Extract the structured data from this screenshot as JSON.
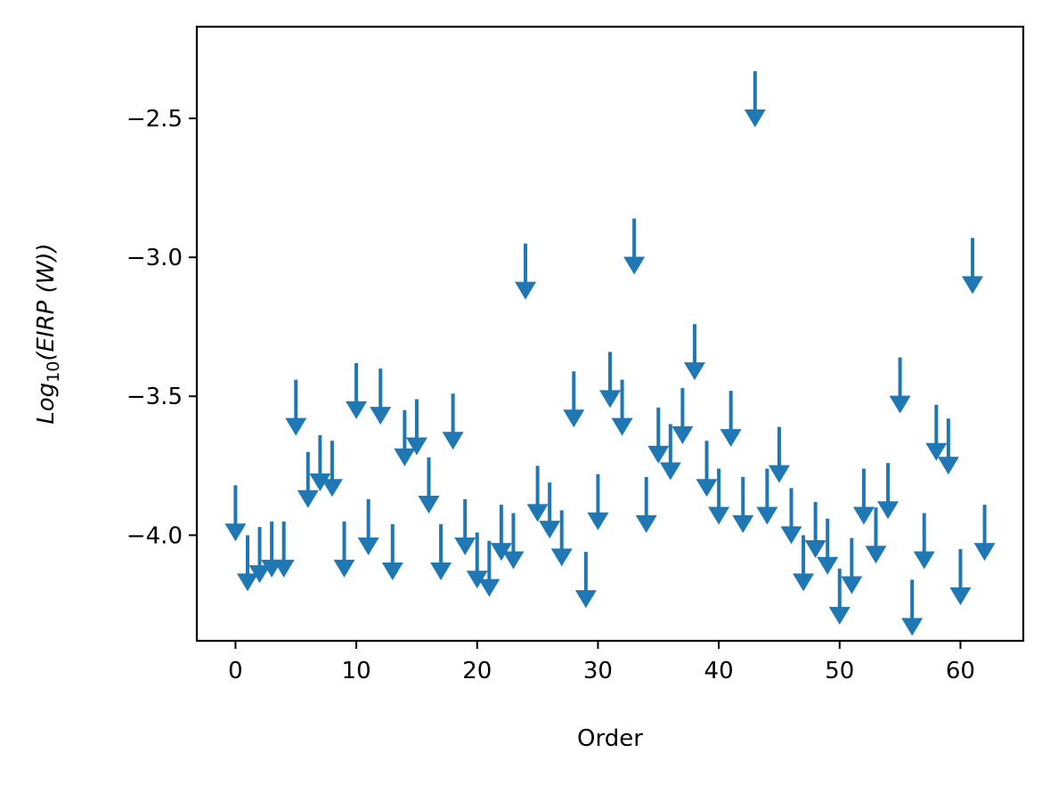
{
  "chart_data": {
    "type": "scatter",
    "marker": "down-arrow",
    "title": "",
    "xlabel": "Order",
    "ylabel": {
      "base": "Log",
      "subscript": "10",
      "rest": "(EIRP (W))"
    },
    "xlim": [
      -3.2,
      65.2
    ],
    "ylim": [
      -4.38,
      -2.17
    ],
    "xticks": [
      0,
      10,
      20,
      30,
      40,
      50,
      60
    ],
    "xtick_labels": [
      "0",
      "10",
      "20",
      "30",
      "40",
      "50",
      "60"
    ],
    "yticks": [
      -4.0,
      -3.5,
      -3.0,
      -2.5
    ],
    "ytick_labels": [
      "−4.0",
      "−3.5",
      "−3.0",
      "−2.5"
    ],
    "grid": false,
    "legend": "none",
    "color": "#1f77b4",
    "series": [
      {
        "x": [
          0,
          1,
          2,
          3,
          4,
          5,
          6,
          7,
          8,
          9,
          10,
          11,
          12,
          13,
          14,
          15,
          16,
          17,
          18,
          19,
          20,
          21,
          22,
          23,
          24,
          25,
          26,
          27,
          28,
          29,
          30,
          31,
          32,
          33,
          34,
          35,
          36,
          37,
          38,
          39,
          40,
          41,
          42,
          43,
          44,
          45,
          46,
          47,
          48,
          49,
          50,
          51,
          52,
          53,
          54,
          55,
          56,
          57,
          58,
          59,
          60,
          61,
          62
        ],
        "y": [
          -3.99,
          -4.17,
          -4.14,
          -4.12,
          -4.12,
          -3.61,
          -3.87,
          -3.81,
          -3.83,
          -4.12,
          -3.55,
          -4.04,
          -3.57,
          -4.13,
          -3.72,
          -3.68,
          -3.89,
          -4.13,
          -3.66,
          -4.04,
          -4.16,
          -4.19,
          -4.06,
          -4.09,
          -3.12,
          -3.92,
          -3.98,
          -4.08,
          -3.58,
          -4.23,
          -3.95,
          -3.51,
          -3.61,
          -3.03,
          -3.96,
          -3.71,
          -3.77,
          -3.64,
          -3.41,
          -3.83,
          -3.93,
          -3.65,
          -3.96,
          -2.5,
          -3.93,
          -3.78,
          -4.0,
          -4.17,
          -4.05,
          -4.11,
          -4.29,
          -4.18,
          -3.93,
          -4.07,
          -3.91,
          -3.53,
          -4.33,
          -4.09,
          -3.7,
          -3.75,
          -4.22,
          -3.1,
          -4.06
        ]
      }
    ]
  }
}
